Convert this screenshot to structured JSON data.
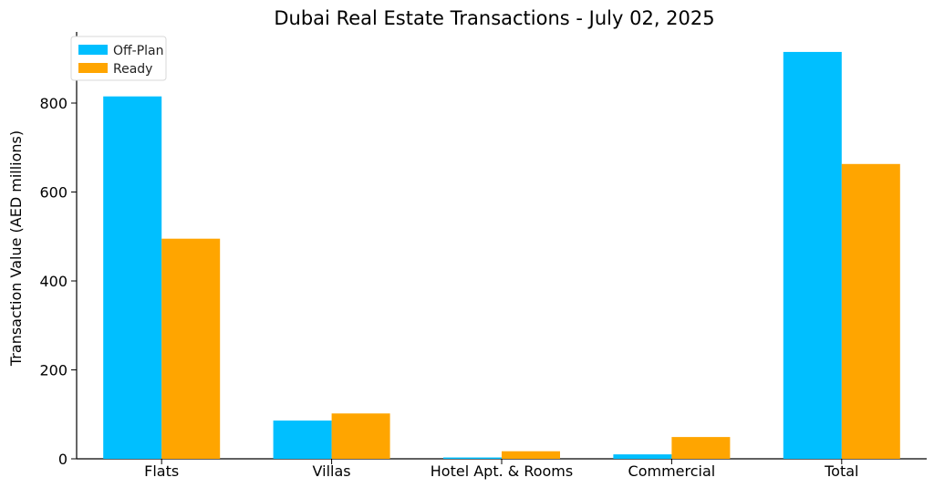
{
  "chart_data": {
    "type": "bar",
    "title": "Dubai Real Estate Transactions - July 02, 2025",
    "xlabel": "",
    "ylabel": "Transaction Value (AED millions)",
    "categories": [
      "Flats",
      "Villas",
      "Hotel Apt. & Rooms",
      "Commercial",
      "Total"
    ],
    "series": [
      {
        "name": "Off-Plan",
        "color": "#00BFFF",
        "values": [
          815,
          86,
          3,
          10,
          915
        ]
      },
      {
        "name": "Ready",
        "color": "#FFA500",
        "values": [
          495,
          102,
          17,
          49,
          663
        ]
      }
    ],
    "yticks": [
      0,
      200,
      400,
      600,
      800
    ],
    "ylim": [
      0,
      960
    ],
    "grid": false,
    "legend_position": "top-left"
  }
}
